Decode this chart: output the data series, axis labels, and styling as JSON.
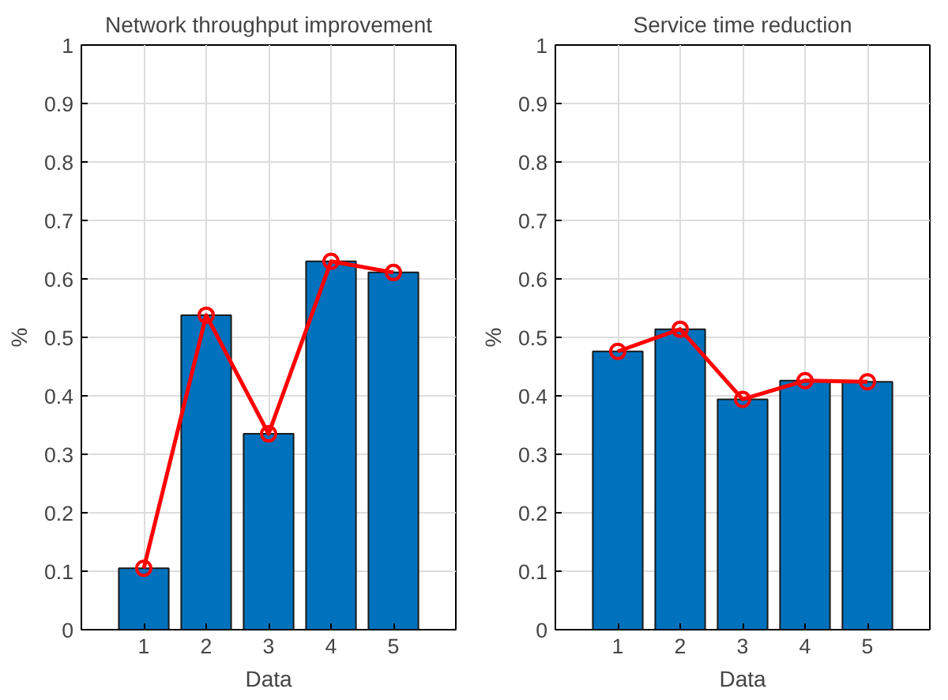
{
  "chart_data": [
    {
      "type": "bar",
      "title": "Network throughput improvement",
      "xlabel": "Data",
      "ylabel": "%",
      "x": [
        1,
        2,
        3,
        4,
        5
      ],
      "xlim": [
        0,
        6
      ],
      "xticks": [
        1,
        2,
        3,
        4,
        5
      ],
      "ylim": [
        0,
        1
      ],
      "yticks": [
        0,
        0.1,
        0.2,
        0.3,
        0.4,
        0.5,
        0.6,
        0.7,
        0.8,
        0.9,
        1
      ],
      "grid": true,
      "marker": "circle",
      "line_style": "solid",
      "series": [
        {
          "color": "#0072bd",
          "values": [
            0.105,
            0.538,
            0.335,
            0.63,
            0.611
          ]
        },
        {
          "type": "line",
          "color": "#ff0000",
          "values": [
            0.105,
            0.538,
            0.335,
            0.63,
            0.611
          ]
        }
      ]
    },
    {
      "type": "bar",
      "title": "Service time reduction",
      "xlabel": "Data",
      "ylabel": "%",
      "x": [
        1,
        2,
        3,
        4,
        5
      ],
      "xlim": [
        0,
        6
      ],
      "xticks": [
        1,
        2,
        3,
        4,
        5
      ],
      "ylim": [
        0,
        1
      ],
      "yticks": [
        0,
        0.1,
        0.2,
        0.3,
        0.4,
        0.5,
        0.6,
        0.7,
        0.8,
        0.9,
        1
      ],
      "grid": true,
      "marker": "circle",
      "line_style": "solid",
      "series": [
        {
          "color": "#0072bd",
          "values": [
            0.476,
            0.514,
            0.394,
            0.426,
            0.424
          ]
        },
        {
          "type": "line",
          "color": "#ff0000",
          "values": [
            0.476,
            0.514,
            0.394,
            0.426,
            0.424
          ]
        }
      ]
    }
  ]
}
